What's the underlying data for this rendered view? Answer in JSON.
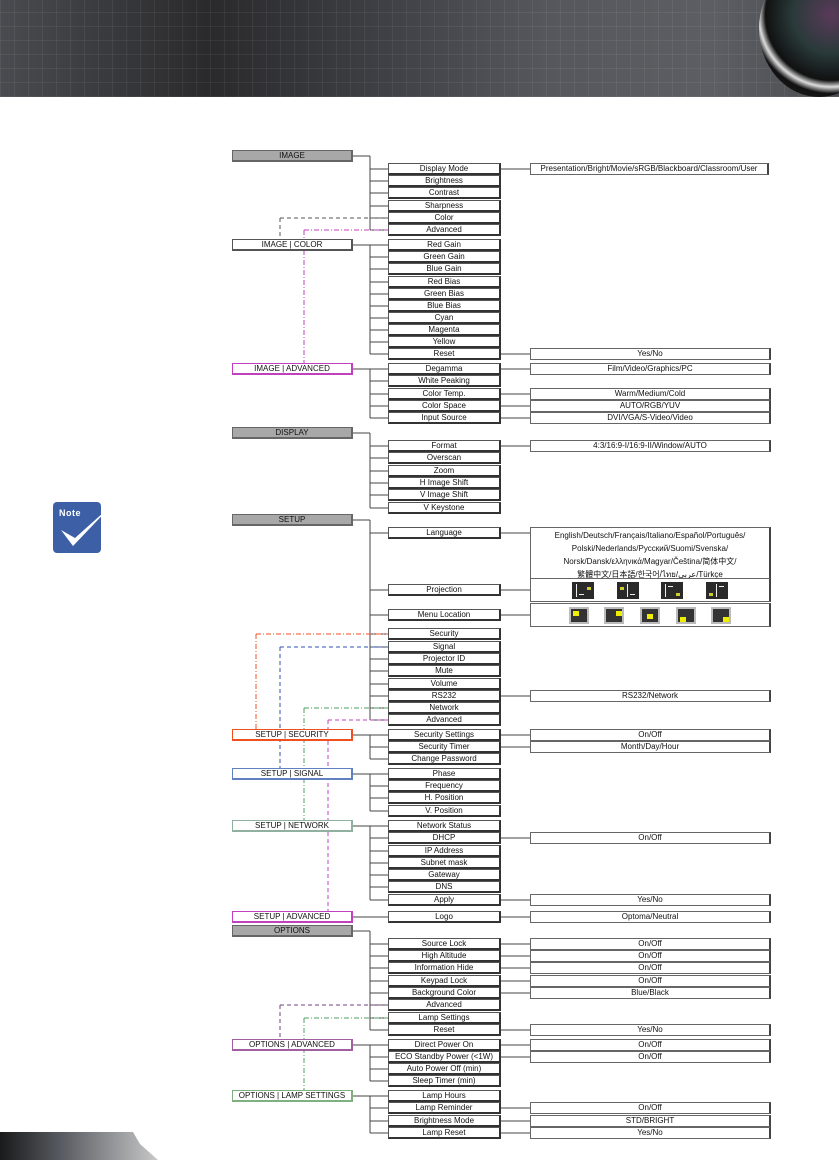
{
  "note_icon": {
    "label": "Note",
    "color": "#3d5fa6"
  },
  "sections": [
    {
      "title": "IMAGE",
      "kind": "top",
      "children": [
        {
          "label": "Display Mode",
          "value": "Presentation/Bright/Movie/sRGB/Blackboard/Classroom/User"
        },
        {
          "label": "Brightness"
        },
        {
          "label": "Contrast"
        },
        {
          "label": "Sharpness"
        },
        {
          "label": "Color",
          "link": "IMAGE | COLOR"
        },
        {
          "label": "Advanced",
          "link": "IMAGE | ADVANCED"
        }
      ]
    },
    {
      "title": "IMAGE | COLOR",
      "kind": "sub",
      "color": "#555555",
      "children": [
        {
          "label": "Red Gain"
        },
        {
          "label": "Green Gain"
        },
        {
          "label": "Blue Gain"
        },
        {
          "label": "Red Bias"
        },
        {
          "label": "Green Bias"
        },
        {
          "label": "Blue Bias"
        },
        {
          "label": "Cyan"
        },
        {
          "label": "Magenta"
        },
        {
          "label": "Yellow"
        },
        {
          "label": "Reset",
          "value": "Yes/No"
        }
      ]
    },
    {
      "title": "IMAGE | ADVANCED",
      "kind": "sub",
      "color": "#c040c0",
      "children": [
        {
          "label": "Degamma",
          "value": "Film/Video/Graphics/PC"
        },
        {
          "label": "White Peaking"
        },
        {
          "label": "Color Temp.",
          "value": "Warm/Medium/Cold"
        },
        {
          "label": "Color Space",
          "value": "AUTO/RGB/YUV"
        },
        {
          "label": "Input Source",
          "value": "DVI/VGA/S-Video/Video"
        }
      ]
    },
    {
      "title": "DISPLAY",
      "kind": "top",
      "children": [
        {
          "label": "Format",
          "value": "4:3/16:9-I/16:9-II/Window/AUTO"
        },
        {
          "label": "Overscan"
        },
        {
          "label": "Zoom"
        },
        {
          "label": "H Image Shift"
        },
        {
          "label": "V Image Shift"
        },
        {
          "label": "V Keystone"
        }
      ]
    },
    {
      "title": "SETUP",
      "kind": "top",
      "children": [
        {
          "label": "Language",
          "value_lines": [
            "English/Deutsch/Français/Italiano/Español/Português/",
            "Polski/Nederlands/Русский/Suomi/Svenska/",
            "Norsk/Dansk/ελληνικά/Magyar/Čeština/简体中文/",
            "繁體中文/日本語/한국어/ไทย/عربي/Türkçe"
          ]
        },
        {
          "label": "Projection",
          "icons": [
            "front-desktop",
            "rear-desktop",
            "front-ceiling",
            "rear-ceiling"
          ]
        },
        {
          "label": "Menu Location",
          "icons": [
            "top-left",
            "top-right",
            "center",
            "bottom-left",
            "bottom-right"
          ]
        },
        {
          "label": "Security",
          "link": "SETUP | SECURITY"
        },
        {
          "label": "Signal",
          "link": "SETUP | SIGNAL"
        },
        {
          "label": "Projector ID"
        },
        {
          "label": "Mute"
        },
        {
          "label": "Volume"
        },
        {
          "label": "RS232",
          "value": "RS232/Network"
        },
        {
          "label": "Network",
          "link": "SETUP  |  NETWORK"
        },
        {
          "label": "Advanced",
          "link": "SETUP | ADVANCED"
        }
      ]
    },
    {
      "title": "SETUP | SECURITY",
      "kind": "sub",
      "color": "#f05020",
      "children": [
        {
          "label": "Security Settings",
          "value": "On/Off"
        },
        {
          "label": "Security Timer",
          "value": "Month/Day/Hour"
        },
        {
          "label": "Change Password"
        }
      ]
    },
    {
      "title": "SETUP | SIGNAL",
      "kind": "sub",
      "color": "#6080c0",
      "children": [
        {
          "label": "Phase"
        },
        {
          "label": "Frequency"
        },
        {
          "label": "H. Position"
        },
        {
          "label": "V. Position"
        }
      ]
    },
    {
      "title": "SETUP  |  NETWORK",
      "kind": "sub",
      "color": "#90b0a0",
      "children": [
        {
          "label": "Network Status"
        },
        {
          "label": "DHCP",
          "value": "On/Off"
        },
        {
          "label": "IP Address"
        },
        {
          "label": "Subnet mask"
        },
        {
          "label": "Gateway"
        },
        {
          "label": "DNS"
        },
        {
          "label": "Apply",
          "value": "Yes/No"
        }
      ]
    },
    {
      "title": "SETUP | ADVANCED",
      "kind": "sub",
      "color": "#c040c0",
      "children": [
        {
          "label": "Logo",
          "value": "Optoma/Neutral"
        }
      ]
    },
    {
      "title": "OPTIONS",
      "kind": "top",
      "children": [
        {
          "label": "Source Lock",
          "value": "On/Off"
        },
        {
          "label": "High Altitude",
          "value": "On/Off"
        },
        {
          "label": "Information Hide",
          "value": "On/Off"
        },
        {
          "label": "Keypad Lock",
          "value": "On/Off"
        },
        {
          "label": "Background Color",
          "value": "Blue/Black"
        },
        {
          "label": "Advanced",
          "link": "OPTIONS | ADVANCED"
        },
        {
          "label": "Lamp Settings",
          "link": "OPTIONS | LAMP SETTINGS"
        },
        {
          "label": "Reset",
          "value": "Yes/No"
        }
      ]
    },
    {
      "title": "OPTIONS | ADVANCED",
      "kind": "sub",
      "color": "#a060a0",
      "children": [
        {
          "label": "Direct Power On",
          "value": "On/Off"
        },
        {
          "label": "ECO Standby Power (<1W)",
          "value": "On/Off"
        },
        {
          "label": "Auto Power Off (min)"
        },
        {
          "label": "Sleep Timer (min)"
        }
      ]
    },
    {
      "title": "OPTIONS | LAMP SETTINGS",
      "kind": "sub",
      "color": "#80b080",
      "children": [
        {
          "label": "Lamp Hours"
        },
        {
          "label": "Lamp Reminder",
          "value": "On/Off"
        },
        {
          "label": "Brightness Mode",
          "value": "STD/BRIGHT"
        },
        {
          "label": "Lamp Reset",
          "value": "Yes/No"
        }
      ]
    }
  ],
  "links": [
    {
      "from": "IMAGE",
      "item": "Color",
      "to": "IMAGE | COLOR",
      "color": "#555555",
      "dash": "4,3"
    },
    {
      "from": "IMAGE",
      "item": "Advanced",
      "to": "IMAGE | ADVANCED",
      "color": "#c040c0",
      "dash": "5,2,1,2"
    },
    {
      "from": "SETUP",
      "item": "Security",
      "to": "SETUP | SECURITY",
      "color": "#f05020",
      "dash": "5,2,1,2"
    },
    {
      "from": "SETUP",
      "item": "Signal",
      "to": "SETUP | SIGNAL",
      "color": "#3050b0",
      "dash": "4,3"
    },
    {
      "from": "SETUP",
      "item": "Network",
      "to": "SETUP  |  NETWORK",
      "color": "#50a060",
      "dash": "5,2,1,2"
    },
    {
      "from": "SETUP",
      "item": "Advanced",
      "to": "SETUP | ADVANCED",
      "color": "#c040c0",
      "dash": "4,3"
    },
    {
      "from": "OPTIONS",
      "item": "Advanced",
      "to": "OPTIONS | ADVANCED",
      "color": "#704080",
      "dash": "4,3"
    },
    {
      "from": "OPTIONS",
      "item": "Lamp Settings",
      "to": "OPTIONS | LAMP SETTINGS",
      "color": "#50a060",
      "dash": "5,2,1,2"
    }
  ]
}
